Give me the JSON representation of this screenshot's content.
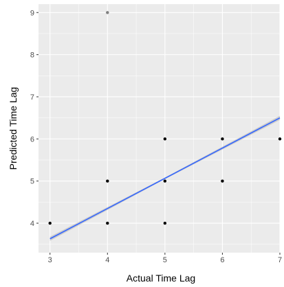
{
  "chart_data": {
    "type": "scatter",
    "xlabel": "Actual Time Lag",
    "ylabel": "Predicted Time Lag",
    "xlim": [
      2.8,
      7.0
    ],
    "ylim": [
      3.3,
      9.2
    ],
    "x_ticks": [
      3,
      4,
      5,
      6,
      7
    ],
    "y_ticks": [
      4,
      5,
      6,
      7,
      8,
      9
    ],
    "grid": true,
    "points": [
      {
        "x": 3,
        "y": 4
      },
      {
        "x": 4,
        "y": 4
      },
      {
        "x": 4,
        "y": 5
      },
      {
        "x": 4,
        "y": 9
      },
      {
        "x": 5,
        "y": 4
      },
      {
        "x": 5,
        "y": 5
      },
      {
        "x": 5,
        "y": 6
      },
      {
        "x": 6,
        "y": 5
      },
      {
        "x": 6,
        "y": 6
      },
      {
        "x": 7,
        "y": 6
      }
    ],
    "trend_line": {
      "x": [
        3,
        7
      ],
      "y": [
        3.63,
        6.5
      ]
    },
    "colors": {
      "panel": "#ebebeb",
      "grid_major": "#ffffff",
      "points": "#000000",
      "trend_line": "#3366ff",
      "confidence_band": "#999999"
    }
  }
}
